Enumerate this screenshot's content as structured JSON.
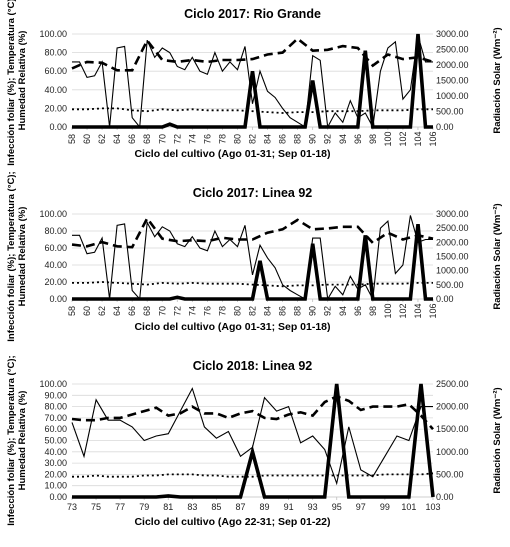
{
  "chart_data": [
    {
      "type": "line",
      "title": "Ciclo 2017: Rio Grande",
      "xlabel": "Ciclo del cultivo (Ago 01-31; Sep 01-18)",
      "ylabel_left": "Infección foliar (%); Temperatura (°C); Humedad Relativa (%)",
      "ylabel_right": "Radiación Solar (Wm⁻²)",
      "x_range": [
        58,
        106
      ],
      "x_ticks": [
        58,
        60,
        62,
        64,
        66,
        68,
        70,
        72,
        74,
        76,
        78,
        80,
        82,
        84,
        86,
        88,
        90,
        92,
        94,
        96,
        98,
        100,
        102,
        104,
        106
      ],
      "x_tick_labels": [
        "58",
        "60",
        "62",
        "64",
        "66",
        "68",
        "70",
        "72",
        "74",
        "76",
        "78",
        "80",
        "82",
        "84",
        "86",
        "88",
        "90",
        "92",
        "94",
        "96",
        "98",
        "100",
        "102",
        "104",
        "106"
      ],
      "y_left_range": [
        0,
        100
      ],
      "y_left_ticks": [
        "0.00",
        "20.00",
        "40.00",
        "60.00",
        "80.00",
        "100.00"
      ],
      "y_right_range": [
        0,
        3000
      ],
      "y_right_ticks": [
        "0.00",
        "500.00",
        "1000.00",
        "1500.00",
        "2000.00",
        "2500.00",
        "3000.00"
      ],
      "grid": true,
      "series": [
        {
          "style": "solid-thin",
          "axis": "right",
          "x": [
            58,
            59,
            60,
            61,
            62,
            63,
            64,
            65,
            66,
            67,
            68,
            69,
            70,
            71,
            72,
            73,
            74,
            75,
            76,
            77,
            78,
            79,
            80,
            81,
            82,
            83,
            84,
            85,
            86,
            87,
            88,
            89,
            90,
            91,
            92,
            93,
            94,
            95,
            96,
            97,
            98,
            99,
            100,
            101,
            102,
            103,
            104,
            105,
            106
          ],
          "y": [
            2100,
            2100,
            1600,
            1650,
            2100,
            0,
            2550,
            2600,
            300,
            0,
            2800,
            2250,
            2550,
            2400,
            1950,
            1850,
            2250,
            1800,
            1700,
            2400,
            1800,
            2100,
            1850,
            2600,
            750,
            1800,
            1150,
            950,
            600,
            300,
            150,
            0,
            2300,
            2150,
            0,
            450,
            150,
            850,
            300,
            450,
            0,
            1800,
            2550,
            2750,
            900,
            1200,
            2950,
            2100,
            2100
          ]
        },
        {
          "style": "dashed-thick",
          "axis": "left",
          "x": [
            58,
            60,
            62,
            64,
            66,
            68,
            70,
            72,
            74,
            76,
            78,
            80,
            82,
            84,
            86,
            88,
            90,
            92,
            94,
            96,
            98,
            100,
            102,
            104,
            106
          ],
          "y": [
            63,
            70,
            69,
            61,
            61,
            93,
            72,
            70,
            72,
            70,
            72,
            72,
            73,
            78,
            80,
            95,
            82,
            83,
            87,
            85,
            66,
            78,
            73,
            75,
            70
          ]
        },
        {
          "style": "dotted",
          "axis": "left",
          "x": [
            58,
            60,
            62,
            64,
            66,
            68,
            70,
            72,
            74,
            76,
            78,
            80,
            82,
            84,
            86,
            88,
            90,
            92,
            94,
            96,
            98,
            100,
            102,
            104,
            106
          ],
          "y": [
            19,
            19,
            20,
            20,
            18,
            17,
            19,
            18,
            19,
            18,
            18,
            18,
            17,
            16,
            15,
            16,
            16,
            17,
            17,
            17,
            18,
            18,
            18,
            19,
            19
          ]
        },
        {
          "style": "solid-thick",
          "axis": "left",
          "x": [
            58,
            70,
            71,
            72,
            73,
            81,
            82,
            83,
            84,
            89,
            90,
            91,
            96,
            97,
            98,
            103,
            104,
            105,
            106
          ],
          "y": [
            0,
            0,
            3,
            0,
            0,
            0,
            60,
            0,
            0,
            0,
            50,
            0,
            0,
            82,
            0,
            0,
            100,
            0,
            0
          ]
        }
      ]
    },
    {
      "type": "line",
      "title": "Ciclo 2017: Linea 92",
      "xlabel": "Ciclo del cultivo (Ago 01-31; Sep 01-18)",
      "ylabel_left": "Infección foliar (%); Temperatura (°C); Humedad Relativa (%)",
      "ylabel_right": "Radiación Solar (Wm⁻²)",
      "x_range": [
        58,
        106
      ],
      "x_ticks": [
        58,
        60,
        62,
        64,
        66,
        68,
        70,
        72,
        74,
        76,
        78,
        80,
        82,
        84,
        86,
        88,
        90,
        92,
        94,
        96,
        98,
        100,
        102,
        104,
        106
      ],
      "x_tick_labels": [
        "58",
        "60",
        "62",
        "64",
        "66",
        "68",
        "70",
        "72",
        "74",
        "76",
        "78",
        "80",
        "82",
        "84",
        "86",
        "88",
        "90",
        "92",
        "94",
        "96",
        "98",
        "100",
        "102",
        "104",
        "106"
      ],
      "y_left_range": [
        0,
        100
      ],
      "y_left_ticks": [
        "0.00",
        "20.00",
        "40.00",
        "60.00",
        "80.00",
        "100.00"
      ],
      "y_right_range": [
        0,
        3000
      ],
      "y_right_ticks": [
        "0.00",
        "500.00",
        "1000.00",
        "1500.00",
        "2000.00",
        "2500.00",
        "3000.00"
      ],
      "grid": true,
      "series": [
        {
          "style": "solid-thin",
          "axis": "right",
          "x": [
            58,
            59,
            60,
            61,
            62,
            63,
            64,
            65,
            66,
            67,
            68,
            69,
            70,
            71,
            72,
            73,
            74,
            75,
            76,
            77,
            78,
            79,
            80,
            81,
            82,
            83,
            84,
            85,
            86,
            87,
            88,
            89,
            90,
            91,
            92,
            93,
            94,
            95,
            96,
            97,
            98,
            99,
            100,
            101,
            102,
            103,
            104,
            105,
            106
          ],
          "y": [
            2250,
            2250,
            1600,
            1650,
            2150,
            0,
            2600,
            2650,
            300,
            0,
            2700,
            2200,
            2550,
            2400,
            1950,
            1850,
            2200,
            1800,
            1700,
            2400,
            1850,
            2100,
            1850,
            2600,
            850,
            1900,
            1450,
            1100,
            500,
            300,
            150,
            0,
            2150,
            2150,
            0,
            450,
            150,
            800,
            350,
            500,
            0,
            2500,
            2750,
            900,
            1200,
            2950,
            2000,
            2100,
            2100
          ]
        },
        {
          "style": "dashed-thick",
          "axis": "left",
          "x": [
            58,
            60,
            62,
            64,
            66,
            68,
            70,
            72,
            74,
            76,
            78,
            80,
            82,
            84,
            86,
            88,
            90,
            92,
            94,
            96,
            98,
            100,
            102,
            104,
            106
          ],
          "y": [
            64,
            62,
            67,
            62,
            61,
            95,
            71,
            68,
            69,
            68,
            72,
            70,
            70,
            78,
            82,
            93,
            82,
            83,
            85,
            85,
            66,
            78,
            70,
            75,
            71
          ]
        },
        {
          "style": "dotted",
          "axis": "left",
          "x": [
            58,
            60,
            62,
            64,
            66,
            68,
            70,
            72,
            74,
            76,
            78,
            80,
            82,
            84,
            86,
            88,
            90,
            92,
            94,
            96,
            98,
            100,
            102,
            104,
            106
          ],
          "y": [
            19,
            19,
            20,
            19,
            18,
            17,
            19,
            18,
            19,
            18,
            18,
            18,
            17,
            16,
            15,
            16,
            16,
            17,
            17,
            17,
            18,
            18,
            18,
            19,
            19
          ]
        },
        {
          "style": "solid-thick",
          "axis": "left",
          "x": [
            58,
            71,
            72,
            73,
            82,
            83,
            84,
            89,
            90,
            91,
            96,
            97,
            98,
            103,
            104,
            105,
            106
          ],
          "y": [
            0,
            0,
            2,
            0,
            0,
            45,
            0,
            0,
            65,
            0,
            0,
            75,
            0,
            0,
            88,
            0,
            0
          ]
        }
      ]
    },
    {
      "type": "line",
      "title": "Ciclo 2018: Linea 92",
      "xlabel": "Ciclo del cultivo (Ago 22-31; Sep 01-22)",
      "ylabel_left": "Infección foliar (%); Temperatura (°C); Humedad Relativa (%)",
      "ylabel_right": "Radiación Solar (Wm⁻²)",
      "x_range": [
        73,
        103
      ],
      "x_ticks": [
        73,
        75,
        77,
        79,
        81,
        83,
        85,
        87,
        89,
        91,
        93,
        95,
        97,
        99,
        101,
        103
      ],
      "x_tick_labels": [
        "73",
        "75",
        "77",
        "79",
        "81",
        "83",
        "85",
        "87",
        "89",
        "91",
        "93",
        "95",
        "97",
        "99",
        "101",
        "103"
      ],
      "y_left_range": [
        0,
        100
      ],
      "y_left_ticks": [
        "0.00",
        "10.00",
        "20.00",
        "30.00",
        "40.00",
        "50.00",
        "60.00",
        "70.00",
        "80.00",
        "90.00",
        "100.00"
      ],
      "y_right_range": [
        0,
        2500
      ],
      "y_right_ticks": [
        "0.00",
        "500.00",
        "1000.00",
        "1500.00",
        "2000.00",
        "2500.00"
      ],
      "grid": true,
      "series": [
        {
          "style": "solid-thin",
          "axis": "right",
          "x": [
            73,
            74,
            75,
            76,
            77,
            78,
            79,
            80,
            81,
            82,
            83,
            84,
            85,
            86,
            87,
            88,
            89,
            90,
            91,
            92,
            93,
            94,
            95,
            96,
            97,
            98,
            99,
            100,
            101,
            102,
            103
          ],
          "y": [
            1650,
            900,
            2150,
            1700,
            1700,
            1550,
            1250,
            1350,
            1400,
            1900,
            2400,
            1550,
            1300,
            1450,
            900,
            1100,
            2200,
            1900,
            2000,
            1200,
            1350,
            1050,
            300,
            1550,
            600,
            450,
            900,
            1350,
            1250,
            2000,
            2000
          ]
        },
        {
          "style": "dashed-thick",
          "axis": "left",
          "x": [
            73,
            74,
            75,
            76,
            77,
            78,
            79,
            80,
            81,
            82,
            83,
            84,
            85,
            86,
            87,
            88,
            89,
            90,
            91,
            92,
            93,
            94,
            95,
            96,
            97,
            98,
            99,
            100,
            101,
            102,
            103
          ],
          "y": [
            69,
            68,
            68,
            70,
            70,
            73,
            76,
            79,
            72,
            74,
            80,
            74,
            74,
            70,
            74,
            76,
            70,
            69,
            73,
            75,
            72,
            84,
            89,
            85,
            77,
            80,
            80,
            80,
            82,
            72,
            60
          ]
        },
        {
          "style": "dotted",
          "axis": "left",
          "x": [
            73,
            74,
            75,
            76,
            77,
            78,
            79,
            80,
            81,
            82,
            83,
            84,
            85,
            86,
            87,
            88,
            89,
            90,
            91,
            92,
            93,
            94,
            95,
            96,
            97,
            98,
            99,
            100,
            101,
            102,
            103
          ],
          "y": [
            18,
            18,
            19,
            18,
            18,
            18,
            19,
            19,
            20,
            20,
            20,
            19,
            19,
            18,
            18,
            18,
            19,
            19,
            19,
            19,
            19,
            19,
            19,
            19,
            19,
            19,
            20,
            20,
            20,
            20,
            21
          ]
        },
        {
          "style": "solid-thick",
          "axis": "left",
          "x": [
            73,
            80,
            81,
            82,
            87,
            88,
            89,
            94,
            95,
            96,
            101,
            102,
            103
          ],
          "y": [
            0,
            0,
            1,
            0,
            0,
            40,
            0,
            0,
            100,
            0,
            0,
            100,
            0
          ]
        }
      ]
    }
  ]
}
